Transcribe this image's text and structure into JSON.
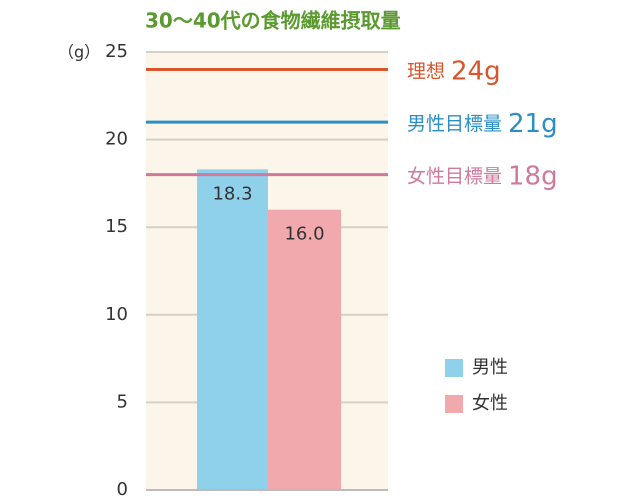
{
  "chart_data": {
    "type": "bar",
    "title": "30〜40代の食物繊維摂取量",
    "y_label": "（g）",
    "categories": [
      null
    ],
    "series": [
      {
        "name": "男性",
        "color": "#8fd0ea",
        "values": [
          18.3
        ],
        "value_labels": [
          "18.3"
        ]
      },
      {
        "name": "女性",
        "color": "#f2a9ae",
        "values": [
          16
        ],
        "value_labels": [
          "16.0"
        ]
      }
    ],
    "reference_lines": [
      {
        "label": "理想",
        "value": 24,
        "value_label": "24g",
        "color": "#d9552e"
      },
      {
        "label": "男性目標量",
        "value": 21,
        "value_label": "21g",
        "color": "#2a8fc4"
      },
      {
        "label": "女性目標量",
        "value": 18,
        "value_label": "18g",
        "color": "#cf7a9c"
      }
    ],
    "ylim": [
      0,
      25
    ],
    "yticks": [
      0,
      5,
      10,
      15,
      20,
      25
    ],
    "grid": true
  }
}
